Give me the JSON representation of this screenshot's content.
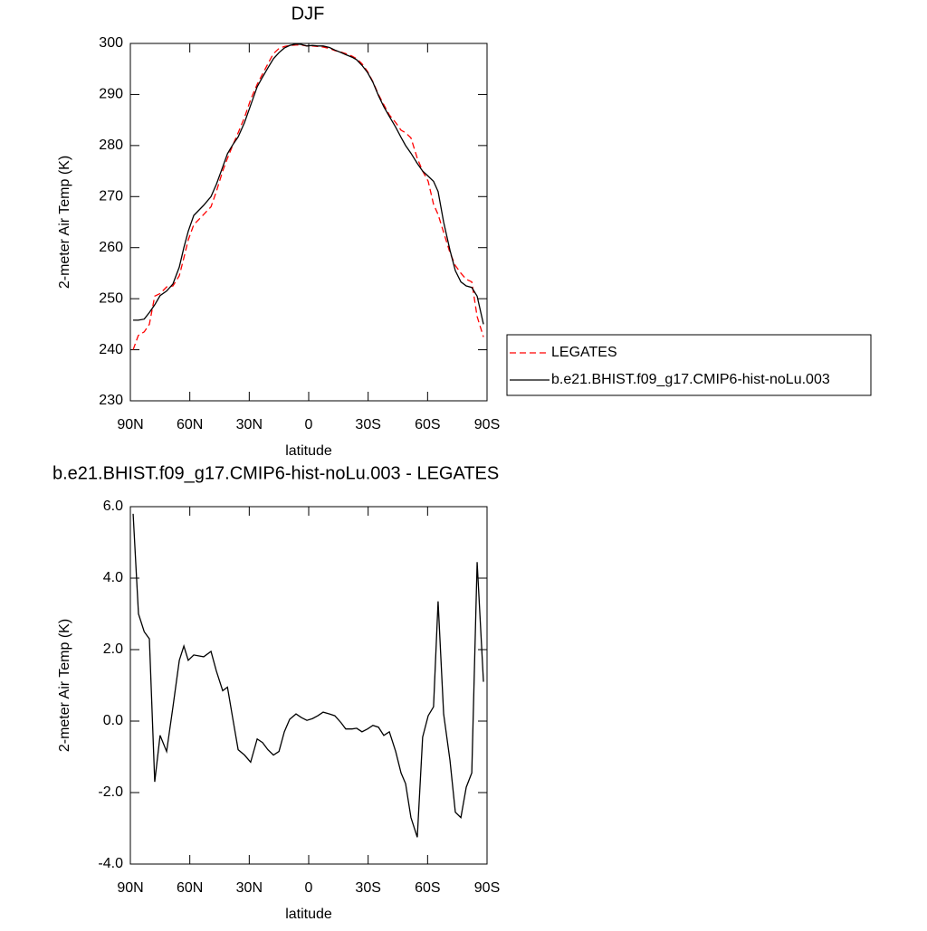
{
  "chart_data": [
    {
      "type": "line",
      "title": "DJF",
      "xlabel": "latitude",
      "ylabel": "2-meter Air Temp (K)",
      "x": [
        88.6,
        86,
        83,
        80.4,
        77.7,
        75,
        71.7,
        68.5,
        65.3,
        63,
        60.8,
        58,
        53,
        49.3,
        46.6,
        43.4,
        41,
        38.4,
        35.6,
        32.4,
        29.3,
        26,
        23.3,
        20.6,
        17.8,
        15,
        12.3,
        9.6,
        6.4,
        3.7,
        0.9,
        -1.9,
        -4.6,
        -7.3,
        -10.5,
        -13.2,
        -16.4,
        -18.7,
        -21.9,
        -24.2,
        -26.9,
        -29.7,
        -32.4,
        -35.2,
        -37.9,
        -40.7,
        -43.9,
        -46.6,
        -48.9,
        -51.6,
        -54.8,
        -57.5,
        -60.3,
        -63,
        -65.3,
        -68.1,
        -71.3,
        -74,
        -76.8,
        -79.5,
        -82.3,
        -85,
        -88.2
      ],
      "series": [
        {
          "name": "LEGATES",
          "color": "#ff0000",
          "line_style": "dashed",
          "values": [
            240,
            242.8,
            243.5,
            245,
            250.5,
            251,
            252.3,
            252.5,
            254.5,
            258,
            261.5,
            264.5,
            266.5,
            268,
            271,
            275,
            277.5,
            280,
            282.5,
            285.5,
            289,
            292,
            294,
            296,
            298,
            299,
            299.4,
            299.6,
            299.7,
            299.7,
            299.5,
            299.5,
            299.4,
            299.3,
            299,
            298.6,
            298.3,
            298,
            297.5,
            297,
            296,
            294.5,
            292.5,
            290,
            288,
            286,
            284.5,
            283,
            282.5,
            281.5,
            277.5,
            275,
            273,
            268.5,
            266.5,
            263,
            259,
            256.5,
            255,
            253.8,
            253.3,
            246.5,
            242.5
          ]
        },
        {
          "name": "b.e21.BHIST.f09_g17.CMIP6-hist-noLu.003",
          "color": "#000000",
          "line_style": "solid",
          "values": [
            245.8,
            245.8,
            246,
            247.3,
            248.8,
            250.6,
            251.5,
            252.9,
            256.2,
            260,
            263.2,
            266.3,
            268.3,
            270,
            272.4,
            275.8,
            278.4,
            280.1,
            281.7,
            284.5,
            287.9,
            291.5,
            293.4,
            295.2,
            297,
            298.2,
            299.1,
            299.6,
            299.9,
            299.8,
            299.5,
            299.6,
            299.5,
            299.5,
            299.2,
            298.7,
            298.2,
            297.8,
            297.3,
            296.8,
            295.7,
            294.3,
            292.4,
            289.8,
            287.6,
            285.7,
            283.6,
            281.6,
            280,
            278.5,
            276.5,
            275,
            274,
            273,
            271,
            265,
            259.5,
            255.5,
            253.3,
            252.5,
            252.2,
            250.5,
            245
          ]
        }
      ],
      "xlim": [
        90,
        -90
      ],
      "xticks": [
        {
          "value": 90,
          "label": "90N"
        },
        {
          "value": 60,
          "label": "60N"
        },
        {
          "value": 30,
          "label": "30N"
        },
        0,
        {
          "value": -30,
          "label": "30S"
        },
        {
          "value": -60,
          "label": "60S"
        },
        {
          "value": -90,
          "label": "90S"
        }
      ],
      "ylim": [
        230,
        300
      ],
      "yticks": [
        230,
        240,
        250,
        260,
        270,
        280,
        290,
        300
      ],
      "legend": "right"
    },
    {
      "type": "line",
      "title": "b.e21.BHIST.f09_g17.CMIP6-hist-noLu.003 - LEGATES",
      "xlabel": "latitude",
      "ylabel": "2-meter Air Temp (K)",
      "x": [
        88.6,
        85.9,
        83,
        80.4,
        77.7,
        75,
        71.7,
        68.5,
        65.3,
        63,
        60.8,
        58,
        53,
        49.3,
        46.6,
        43.4,
        41,
        38.4,
        35.6,
        32.4,
        29.3,
        26,
        23.3,
        20.6,
        17.8,
        15,
        12.3,
        9.6,
        6.4,
        3.7,
        0.9,
        -1.9,
        -4.6,
        -7.3,
        -10.5,
        -13.2,
        -16.4,
        -18.7,
        -21.9,
        -24.2,
        -26.9,
        -29.7,
        -32.4,
        -35.2,
        -37.9,
        -40.7,
        -43.9,
        -46.6,
        -48.9,
        -51.6,
        -54.8,
        -57.5,
        -60.3,
        -63,
        -65.3,
        -68.1,
        -71.3,
        -74,
        -76.8,
        -79.5,
        -82.3,
        -85,
        -88.2
      ],
      "values": [
        5.8,
        3.0,
        2.5,
        2.3,
        -1.7,
        -0.4,
        -0.85,
        0.4,
        1.7,
        2.1,
        1.7,
        1.85,
        1.8,
        1.95,
        1.4,
        0.85,
        0.95,
        0.1,
        -0.8,
        -0.95,
        -1.15,
        -0.5,
        -0.6,
        -0.8,
        -0.95,
        -0.85,
        -0.3,
        0.05,
        0.2,
        0.1,
        0.02,
        0.07,
        0.15,
        0.25,
        0.2,
        0.15,
        -0.05,
        -0.22,
        -0.22,
        -0.2,
        -0.3,
        -0.22,
        -0.12,
        -0.17,
        -0.4,
        -0.3,
        -0.85,
        -1.45,
        -1.75,
        -2.7,
        -3.25,
        -0.45,
        0.15,
        0.4,
        3.35,
        0.2,
        -1.1,
        -2.55,
        -2.7,
        -1.85,
        -1.45,
        4.45,
        1.1
      ],
      "color": "#000000",
      "xlim": [
        90,
        -90
      ],
      "xticks": [
        {
          "value": 90,
          "label": "90N"
        },
        {
          "value": 60,
          "label": "60N"
        },
        {
          "value": 30,
          "label": "30N"
        },
        0,
        {
          "value": -30,
          "label": "30S"
        },
        {
          "value": -60,
          "label": "60S"
        },
        {
          "value": -90,
          "label": "90S"
        }
      ],
      "ylim": [
        -4,
        6
      ],
      "yticks": [
        {
          "value": -4,
          "label": "-4.0"
        },
        {
          "value": -2,
          "label": "-2.0"
        },
        {
          "value": 0,
          "label": "0.0"
        },
        {
          "value": 2,
          "label": "2.0"
        },
        {
          "value": 4,
          "label": "4.0"
        },
        {
          "value": 6,
          "label": "6.0"
        }
      ]
    }
  ]
}
